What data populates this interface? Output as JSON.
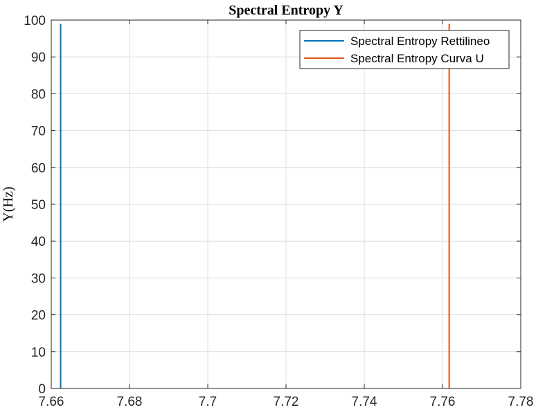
{
  "chart_data": {
    "type": "line",
    "title": "Spectral Entropy Y",
    "xlabel": "",
    "ylabel": "Y(Hz)",
    "xlim": [
      7.66,
      7.78
    ],
    "ylim": [
      0,
      100
    ],
    "x_ticks": [
      "7.66",
      "7.68",
      "7.7",
      "7.72",
      "7.74",
      "7.76",
      "7.78"
    ],
    "y_ticks": [
      "0",
      "10",
      "20",
      "30",
      "40",
      "50",
      "60",
      "70",
      "80",
      "90",
      "100"
    ],
    "grid": true,
    "legend_position": "top-right",
    "series": [
      {
        "name": "Spectral Entropy Rettilineo",
        "color": "#0072BD",
        "x": [
          7.6624,
          7.6624
        ],
        "y": [
          0,
          99
        ]
      },
      {
        "name": "Spectral Entropy Curva U",
        "color": "#D95319",
        "x": [
          7.7617,
          7.7617
        ],
        "y": [
          0,
          99
        ]
      }
    ]
  }
}
